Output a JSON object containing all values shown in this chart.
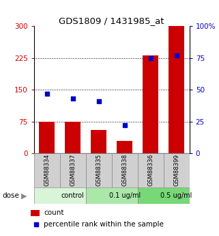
{
  "title": "GDS1809 / 1431985_at",
  "samples": [
    "GSM88334",
    "GSM88337",
    "GSM88335",
    "GSM88338",
    "GSM88336",
    "GSM88399"
  ],
  "bar_values": [
    75,
    75,
    55,
    30,
    230,
    300
  ],
  "dot_values": [
    47,
    43,
    41,
    22,
    75,
    77
  ],
  "group_bounds": [
    [
      0,
      2,
      "control",
      "#d8f5d8"
    ],
    [
      2,
      4,
      "0.1 ug/ml",
      "#aae8aa"
    ],
    [
      4,
      6,
      "0.5 ug/ml",
      "#77d877"
    ]
  ],
  "dose_label": "dose",
  "bar_color": "#cc0000",
  "dot_color": "#0000cc",
  "left_axis_color": "#cc0000",
  "right_axis_color": "#0000cc",
  "left_ylim": [
    0,
    300
  ],
  "right_ylim": [
    0,
    100
  ],
  "left_yticks": [
    0,
    75,
    150,
    225,
    300
  ],
  "right_yticks": [
    0,
    25,
    50,
    75,
    100
  ],
  "right_yticklabels": [
    "0",
    "25",
    "50",
    "75",
    "100%"
  ],
  "grid_values": [
    75,
    150,
    225
  ],
  "legend_count": "count",
  "legend_pct": "percentile rank within the sample",
  "bar_width": 0.6,
  "sample_box_color": "#d0d0d0",
  "figsize": [
    3.21,
    3.45
  ],
  "dpi": 100
}
